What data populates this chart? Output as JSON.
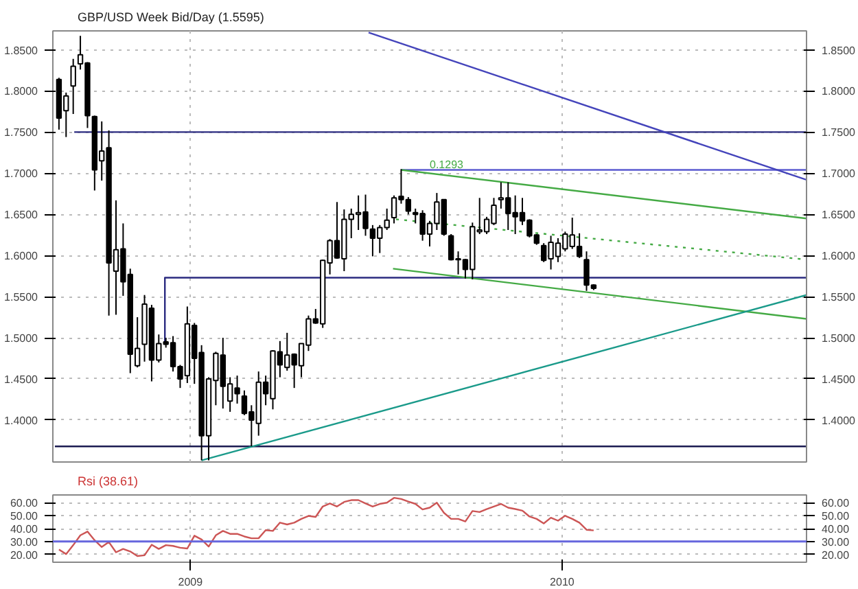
{
  "chart_data": [
    {
      "type": "candlestick",
      "title": "GBP/USD Week Bid/Day (1.5595)",
      "x": [
        "2008-08-25",
        "2008-09-01",
        "2008-09-08",
        "2008-09-15",
        "2008-09-22",
        "2008-09-29",
        "2008-10-06",
        "2008-10-13",
        "2008-10-20",
        "2008-10-27",
        "2008-11-03",
        "2008-11-10",
        "2008-11-17",
        "2008-11-24",
        "2008-12-01",
        "2008-12-08",
        "2008-12-15",
        "2008-12-22",
        "2008-12-29",
        "2009-01-05",
        "2009-01-12",
        "2009-01-19",
        "2009-01-26",
        "2009-02-02",
        "2009-02-09",
        "2009-02-16",
        "2009-02-23",
        "2009-03-02",
        "2009-03-09",
        "2009-03-16",
        "2009-03-23",
        "2009-03-30",
        "2009-04-06",
        "2009-04-13",
        "2009-04-20",
        "2009-04-27",
        "2009-05-04",
        "2009-05-11",
        "2009-05-18",
        "2009-05-25",
        "2009-06-01",
        "2009-06-08",
        "2009-06-15",
        "2009-06-22",
        "2009-06-29",
        "2009-07-06",
        "2009-07-13",
        "2009-07-20",
        "2009-07-27",
        "2009-08-03",
        "2009-08-10",
        "2009-08-17",
        "2009-08-24",
        "2009-08-31",
        "2009-09-07",
        "2009-09-14",
        "2009-09-21",
        "2009-09-28",
        "2009-10-05",
        "2009-10-12",
        "2009-10-19",
        "2009-10-26",
        "2009-11-02",
        "2009-11-09",
        "2009-11-16",
        "2009-11-23",
        "2009-11-30",
        "2009-12-07",
        "2009-12-14",
        "2009-12-21",
        "2009-12-28",
        "2010-01-04",
        "2010-01-11",
        "2010-01-18",
        "2010-01-25",
        "2010-02-01"
      ],
      "ohlc": [
        [
          1.814,
          1.816,
          1.753,
          1.767
        ],
        [
          1.776,
          1.798,
          1.744,
          1.794
        ],
        [
          1.806,
          1.839,
          1.772,
          1.83
        ],
        [
          1.833,
          1.867,
          1.826,
          1.844
        ],
        [
          1.834,
          1.835,
          1.755,
          1.77
        ],
        [
          1.769,
          1.77,
          1.679,
          1.704
        ],
        [
          1.715,
          1.763,
          1.691,
          1.727
        ],
        [
          1.731,
          1.752,
          1.527,
          1.591
        ],
        [
          1.581,
          1.667,
          1.528,
          1.607
        ],
        [
          1.608,
          1.639,
          1.551,
          1.568
        ],
        [
          1.577,
          1.584,
          1.457,
          1.48
        ],
        [
          1.466,
          1.525,
          1.464,
          1.487
        ],
        [
          1.492,
          1.552,
          1.471,
          1.541
        ],
        [
          1.536,
          1.54,
          1.447,
          1.473
        ],
        [
          1.473,
          1.504,
          1.47,
          1.493
        ],
        [
          1.495,
          1.5,
          1.488,
          1.492
        ],
        [
          1.494,
          1.502,
          1.459,
          1.465
        ],
        [
          1.465,
          1.467,
          1.439,
          1.45
        ],
        [
          1.454,
          1.538,
          1.445,
          1.517
        ],
        [
          1.515,
          1.518,
          1.444,
          1.475
        ],
        [
          1.482,
          1.491,
          1.351,
          1.381
        ],
        [
          1.381,
          1.452,
          1.351,
          1.45
        ],
        [
          1.448,
          1.483,
          1.418,
          1.481
        ],
        [
          1.479,
          1.5,
          1.414,
          1.441
        ],
        [
          1.423,
          1.452,
          1.41,
          1.444
        ],
        [
          1.439,
          1.454,
          1.42,
          1.432
        ],
        [
          1.429,
          1.436,
          1.406,
          1.408
        ],
        [
          1.41,
          1.418,
          1.368,
          1.4
        ],
        [
          1.396,
          1.459,
          1.381,
          1.446
        ],
        [
          1.446,
          1.454,
          1.418,
          1.432
        ],
        [
          1.426,
          1.485,
          1.413,
          1.484
        ],
        [
          1.483,
          1.496,
          1.452,
          1.467
        ],
        [
          1.464,
          1.506,
          1.46,
          1.479
        ],
        [
          1.48,
          1.481,
          1.439,
          1.467
        ],
        [
          1.466,
          1.493,
          1.452,
          1.493
        ],
        [
          1.491,
          1.527,
          1.484,
          1.523
        ],
        [
          1.523,
          1.535,
          1.517,
          1.518
        ],
        [
          1.517,
          1.595,
          1.512,
          1.594
        ],
        [
          1.591,
          1.62,
          1.577,
          1.618
        ],
        [
          1.618,
          1.665,
          1.596,
          1.597
        ],
        [
          1.596,
          1.656,
          1.581,
          1.644
        ],
        [
          1.644,
          1.657,
          1.621,
          1.65
        ],
        [
          1.65,
          1.673,
          1.631,
          1.652
        ],
        [
          1.653,
          1.674,
          1.624,
          1.633
        ],
        [
          1.632,
          1.637,
          1.599,
          1.621
        ],
        [
          1.621,
          1.637,
          1.603,
          1.634
        ],
        [
          1.634,
          1.657,
          1.631,
          1.643
        ],
        [
          1.646,
          1.673,
          1.639,
          1.67
        ],
        [
          1.672,
          1.705,
          1.663,
          1.668
        ],
        [
          1.668,
          1.671,
          1.65,
          1.654
        ],
        [
          1.652,
          1.657,
          1.639,
          1.65
        ],
        [
          1.651,
          1.655,
          1.618,
          1.626
        ],
        [
          1.626,
          1.642,
          1.611,
          1.639
        ],
        [
          1.639,
          1.676,
          1.631,
          1.665
        ],
        [
          1.668,
          1.668,
          1.624,
          1.626
        ],
        [
          1.624,
          1.626,
          1.594,
          1.595
        ],
        [
          1.596,
          1.605,
          1.577,
          1.595
        ],
        [
          1.595,
          1.596,
          1.572,
          1.583
        ],
        [
          1.583,
          1.64,
          1.571,
          1.635
        ],
        [
          1.629,
          1.67,
          1.626,
          1.631
        ],
        [
          1.629,
          1.647,
          1.626,
          1.644
        ],
        [
          1.639,
          1.67,
          1.637,
          1.661
        ],
        [
          1.668,
          1.689,
          1.657,
          1.67
        ],
        [
          1.67,
          1.689,
          1.631,
          1.651
        ],
        [
          1.652,
          1.673,
          1.626,
          1.647
        ],
        [
          1.652,
          1.67,
          1.637,
          1.642
        ],
        [
          1.643,
          1.644,
          1.622,
          1.624
        ],
        [
          1.625,
          1.626,
          1.613,
          1.615
        ],
        [
          1.612,
          1.615,
          1.592,
          1.594
        ],
        [
          1.596,
          1.624,
          1.583,
          1.616
        ],
        [
          1.599,
          1.621,
          1.592,
          1.615
        ],
        [
          1.608,
          1.629,
          1.605,
          1.626
        ],
        [
          1.611,
          1.646,
          1.608,
          1.625
        ],
        [
          1.611,
          1.627,
          1.597,
          1.599
        ],
        [
          1.595,
          1.605,
          1.557,
          1.564
        ],
        [
          1.564,
          1.565,
          1.558,
          1.56
        ]
      ],
      "series": [
        {
          "type": "line",
          "x": [
            "2008-09-09",
            "2010-08-29"
          ],
          "values": [
            1.75,
            1.75
          ],
          "color": "#2b2b80",
          "line_style": "solid"
        },
        {
          "type": "line",
          "x": [
            "2009-07-27",
            "2010-08-29"
          ],
          "values": [
            1.704,
            1.704
          ],
          "color": "#5a5ad0",
          "line_style": "solid"
        },
        {
          "type": "line",
          "x": [
            "2008-12-07",
            "2008-12-07",
            "2010-08-29"
          ],
          "values": [
            1.493,
            1.573,
            1.573
          ],
          "color": "#2b2b80",
          "line_style": "solid"
        },
        {
          "type": "line",
          "x": [
            "2008-08-21",
            "2010-08-29"
          ],
          "values": [
            1.368,
            1.368
          ],
          "color": "#1a1a50",
          "line_style": "solid"
        },
        {
          "type": "line",
          "x": [
            "2009-06-25",
            "2010-08-29"
          ],
          "values": [
            1.871,
            1.692
          ],
          "color": "#4444bb",
          "line_style": "solid"
        },
        {
          "type": "line",
          "x": [
            "2009-07-27",
            "2010-08-29"
          ],
          "values": [
            1.704,
            1.645
          ],
          "color": "#44aa44",
          "line_style": "solid"
        },
        {
          "type": "line",
          "x": [
            "2009-07-19",
            "2010-08-29"
          ],
          "values": [
            1.584,
            1.523
          ],
          "color": "#44aa44",
          "line_style": "solid"
        },
        {
          "type": "line",
          "x": [
            "2009-07-22",
            "2010-08-29"
          ],
          "values": [
            1.644,
            1.595
          ],
          "color": "#44aa44",
          "line_style": "dotted"
        },
        {
          "type": "line",
          "x": [
            "2009-01-12",
            "2010-08-29"
          ],
          "values": [
            1.351,
            1.552
          ],
          "color": "#1a9a8a",
          "line_style": "solid"
        }
      ],
      "annotations": [
        {
          "text": "0.1293",
          "x": "2009-08-24",
          "y": 1.706
        }
      ],
      "xlim": [
        "2008-08-19",
        "2010-08-29"
      ],
      "ylim": [
        1.349,
        1.873
      ],
      "xticks": [
        {
          "value": "2009-01-01",
          "label": null
        },
        {
          "value": "2010-01-01",
          "label": null
        }
      ],
      "yticks": [
        {
          "value": 1.4,
          "label": "1.4000"
        },
        {
          "value": 1.45,
          "label": "1.4500"
        },
        {
          "value": 1.5,
          "label": "1.5000"
        },
        {
          "value": 1.55,
          "label": "1.5500"
        },
        {
          "value": 1.6,
          "label": "1.6000"
        },
        {
          "value": 1.65,
          "label": "1.6500"
        },
        {
          "value": 1.7,
          "label": "1.7000"
        },
        {
          "value": 1.75,
          "label": "1.7500"
        },
        {
          "value": 1.8,
          "label": "1.8000"
        },
        {
          "value": 1.85,
          "label": "1.8500"
        }
      ],
      "y2lim": [
        1.349,
        1.873
      ],
      "y2ticks": [
        {
          "value": 1.4,
          "label": "1.4000"
        },
        {
          "value": 1.45,
          "label": "1.4500"
        },
        {
          "value": 1.5,
          "label": "1.5000"
        },
        {
          "value": 1.55,
          "label": "1.5500"
        },
        {
          "value": 1.6,
          "label": "1.6000"
        },
        {
          "value": 1.65,
          "label": "1.6500"
        },
        {
          "value": 1.7,
          "label": "1.7000"
        },
        {
          "value": 1.75,
          "label": "1.7500"
        },
        {
          "value": 1.8,
          "label": "1.8000"
        },
        {
          "value": 1.85,
          "label": "1.8500"
        }
      ],
      "grid": true,
      "tick_labels": "y"
    },
    {
      "type": "line",
      "title": "Rsi (38.61)",
      "x": [
        "2008-08-25",
        "2008-09-01",
        "2008-09-08",
        "2008-09-15",
        "2008-09-22",
        "2008-09-29",
        "2008-10-06",
        "2008-10-13",
        "2008-10-20",
        "2008-10-27",
        "2008-11-03",
        "2008-11-10",
        "2008-11-17",
        "2008-11-24",
        "2008-12-01",
        "2008-12-08",
        "2008-12-15",
        "2008-12-22",
        "2008-12-29",
        "2009-01-05",
        "2009-01-12",
        "2009-01-19",
        "2009-01-26",
        "2009-02-02",
        "2009-02-09",
        "2009-02-16",
        "2009-02-23",
        "2009-03-02",
        "2009-03-09",
        "2009-03-16",
        "2009-03-23",
        "2009-03-30",
        "2009-04-06",
        "2009-04-13",
        "2009-04-20",
        "2009-04-27",
        "2009-05-04",
        "2009-05-11",
        "2009-05-18",
        "2009-05-25",
        "2009-06-01",
        "2009-06-08",
        "2009-06-15",
        "2009-06-22",
        "2009-06-29",
        "2009-07-06",
        "2009-07-13",
        "2009-07-20",
        "2009-07-27",
        "2009-08-03",
        "2009-08-10",
        "2009-08-17",
        "2009-08-24",
        "2009-08-31",
        "2009-09-07",
        "2009-09-14",
        "2009-09-21",
        "2009-09-28",
        "2009-10-05",
        "2009-10-12",
        "2009-10-19",
        "2009-10-26",
        "2009-11-02",
        "2009-11-09",
        "2009-11-16",
        "2009-11-23",
        "2009-11-30",
        "2009-12-07",
        "2009-12-14",
        "2009-12-21",
        "2009-12-28",
        "2010-01-04",
        "2010-01-11",
        "2010-01-18",
        "2010-01-25",
        "2010-02-01"
      ],
      "series": [
        {
          "color": "#cc5555",
          "values": [
            23.8,
            20.3,
            27.2,
            34.8,
            37.7,
            31.0,
            25.8,
            29.6,
            21.7,
            24.3,
            22.3,
            18.8,
            19.4,
            27.5,
            24.3,
            27.2,
            26.6,
            25.2,
            24.6,
            34.5,
            31.6,
            26.1,
            34.8,
            38.2,
            35.9,
            35.9,
            33.9,
            32.5,
            32.5,
            38.8,
            38.2,
            44.6,
            43.2,
            44.6,
            47.5,
            49.8,
            49.0,
            57.1,
            59.4,
            57.1,
            60.6,
            62.0,
            62.0,
            59.4,
            57.1,
            59.1,
            60.0,
            63.8,
            62.9,
            60.9,
            59.1,
            54.8,
            56.2,
            60.0,
            52.2,
            47.5,
            47.5,
            45.5,
            53.6,
            52.8,
            55.1,
            57.1,
            59.1,
            56.2,
            55.1,
            53.9,
            49.3,
            47.5,
            44.0,
            48.4,
            46.1,
            49.9,
            47.5,
            44.6,
            39.1,
            38.6
          ]
        }
      ],
      "ref_lines": [
        {
          "axis": "y",
          "value": 30,
          "color": "#6666dd"
        }
      ],
      "xlim": [
        "2008-08-19",
        "2010-08-29"
      ],
      "ylim": [
        14,
        66
      ],
      "xticks": [
        {
          "value": "2009-01-01",
          "label": "2009"
        },
        {
          "value": "2010-01-01",
          "label": "2010"
        }
      ],
      "yticks": [
        {
          "value": 20,
          "label": "20.00"
        },
        {
          "value": 30,
          "label": "30.00"
        },
        {
          "value": 40,
          "label": "40.00"
        },
        {
          "value": 50,
          "label": "50.00"
        },
        {
          "value": 60,
          "label": "60.00"
        }
      ],
      "y2lim": [
        14,
        66
      ],
      "y2ticks": [
        {
          "value": 20,
          "label": "20.00"
        },
        {
          "value": 30,
          "label": "30.00"
        },
        {
          "value": 40,
          "label": "40.00"
        },
        {
          "value": 50,
          "label": "50.00"
        },
        {
          "value": 60,
          "label": "60.00"
        }
      ],
      "grid": true
    }
  ]
}
